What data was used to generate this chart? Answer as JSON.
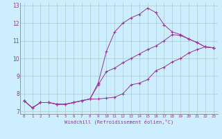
{
  "xlabel": "Windchill (Refroidissement éolien,°C)",
  "background_color": "#cceeff",
  "grid_color": "#aacccc",
  "line_color": "#993399",
  "xlim": [
    -0.5,
    23.5
  ],
  "ylim": [
    6.85,
    13.15
  ],
  "xticks": [
    0,
    1,
    2,
    3,
    4,
    5,
    6,
    7,
    8,
    9,
    10,
    11,
    12,
    13,
    14,
    15,
    16,
    17,
    18,
    19,
    20,
    21,
    22,
    23
  ],
  "yticks": [
    7,
    8,
    9,
    10,
    11,
    12,
    13
  ],
  "line1_x": [
    0,
    1,
    2,
    3,
    4,
    5,
    6,
    7,
    8,
    9,
    10,
    11,
    12,
    13,
    14,
    15,
    16,
    17,
    18,
    19,
    20,
    21,
    22,
    23
  ],
  "line1_y": [
    7.6,
    7.2,
    7.5,
    7.5,
    7.4,
    7.4,
    7.5,
    7.6,
    7.7,
    8.6,
    10.4,
    11.5,
    12.0,
    12.3,
    12.5,
    12.85,
    12.6,
    11.9,
    11.5,
    11.35,
    11.1,
    10.9,
    10.65,
    10.6
  ],
  "line2_x": [
    0,
    1,
    2,
    3,
    4,
    5,
    6,
    7,
    8,
    9,
    10,
    11,
    12,
    13,
    14,
    15,
    16,
    17,
    18,
    19,
    20,
    21,
    22,
    23
  ],
  "line2_y": [
    7.6,
    7.2,
    7.5,
    7.5,
    7.4,
    7.4,
    7.5,
    7.6,
    7.7,
    8.5,
    9.25,
    9.45,
    9.75,
    10.0,
    10.25,
    10.5,
    10.7,
    11.0,
    11.35,
    11.3,
    11.1,
    10.9,
    10.65,
    10.6
  ],
  "line3_x": [
    0,
    1,
    2,
    3,
    4,
    5,
    6,
    7,
    8,
    9,
    10,
    11,
    12,
    13,
    14,
    15,
    16,
    17,
    18,
    19,
    20,
    21,
    22,
    23
  ],
  "line3_y": [
    7.6,
    7.2,
    7.5,
    7.5,
    7.4,
    7.4,
    7.5,
    7.6,
    7.7,
    7.7,
    7.75,
    7.8,
    8.0,
    8.5,
    8.6,
    8.8,
    9.3,
    9.5,
    9.8,
    10.0,
    10.3,
    10.5,
    10.65,
    10.6
  ]
}
